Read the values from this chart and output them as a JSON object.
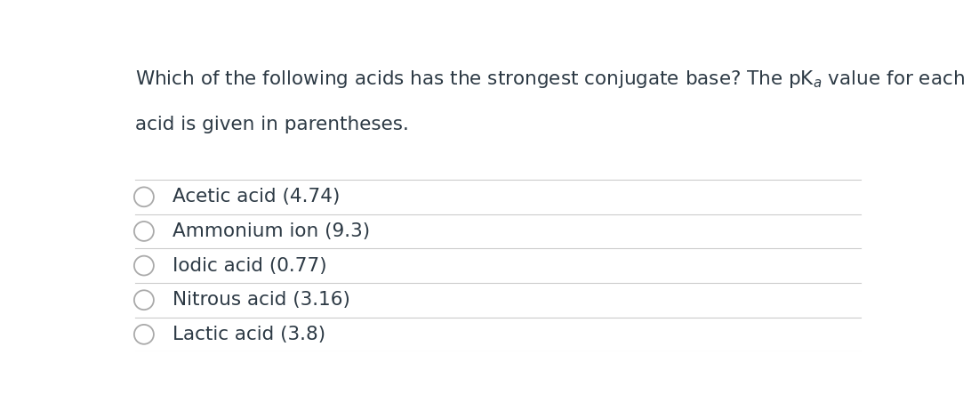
{
  "title_line1": "Which of the following acids has the strongest conjugate base? The pK$_a$ value for each",
  "title_line2": "acid is given in parentheses.",
  "options": [
    "Acetic acid (4.74)",
    "Ammonium ion (9.3)",
    "Iodic acid (0.77)",
    "Nitrous acid (3.16)",
    "Lactic acid (3.8)"
  ],
  "background_color": "#ffffff",
  "text_color": "#2d3a45",
  "line_color": "#cccccc",
  "circle_color": "#aaaaaa",
  "font_size_title": 15.5,
  "font_size_options": 15.5,
  "fig_width": 10.92,
  "fig_height": 4.44
}
